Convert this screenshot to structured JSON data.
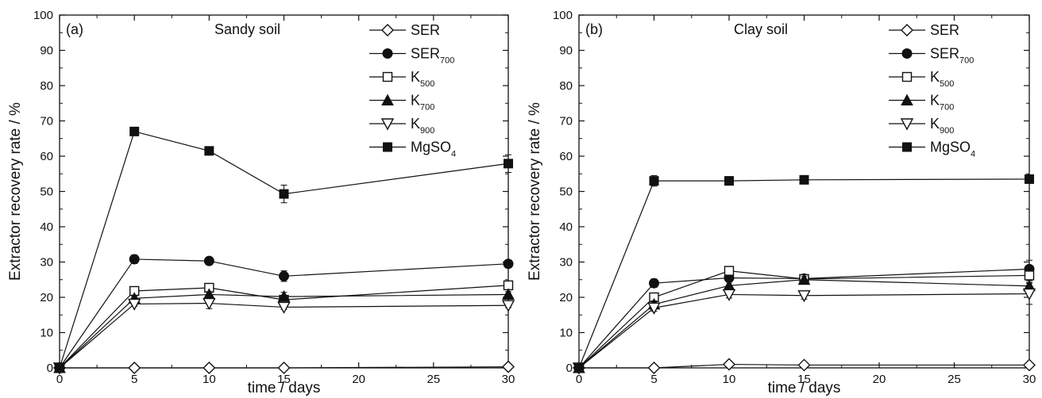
{
  "chart_data": [
    {
      "type": "line",
      "panel_label": "(a)",
      "title": "Sandy soil",
      "xlabel": "time / days",
      "ylabel": "Extractor recovery rate / %",
      "xlim": [
        0,
        30
      ],
      "ylim": [
        0,
        100
      ],
      "x_ticks": [
        0,
        5,
        10,
        15,
        20,
        25,
        30
      ],
      "y_ticks": [
        0,
        10,
        20,
        30,
        40,
        50,
        60,
        70,
        80,
        90,
        100
      ],
      "legend_position": "top-right",
      "x": [
        0,
        5,
        10,
        15,
        30
      ],
      "series": [
        {
          "name": "SER",
          "label_main": "SER",
          "label_sub": "",
          "marker": "diamond-open",
          "values": [
            0,
            0,
            0,
            0,
            0.3
          ],
          "errors": [
            0,
            0,
            0,
            0,
            0
          ]
        },
        {
          "name": "SER700",
          "label_main": "SER",
          "label_sub": "700",
          "marker": "circle-filled",
          "values": [
            0,
            30.8,
            30.3,
            26,
            29.5
          ],
          "errors": [
            0,
            1.2,
            0.6,
            1.5,
            0.8
          ]
        },
        {
          "name": "K500",
          "label_main": "K",
          "label_sub": "500",
          "marker": "square-open",
          "values": [
            0,
            21.8,
            22.7,
            19.3,
            23.4
          ],
          "errors": [
            0,
            0.6,
            0.6,
            0.6,
            0.6
          ]
        },
        {
          "name": "K700",
          "label_main": "K",
          "label_sub": "700",
          "marker": "triangle-up-filled",
          "values": [
            0,
            19.7,
            20.8,
            20.2,
            20.8
          ],
          "errors": [
            0,
            0.6,
            0.8,
            1.2,
            0.8
          ]
        },
        {
          "name": "K900",
          "label_main": "K",
          "label_sub": "900",
          "marker": "triangle-down-open",
          "values": [
            0,
            18.1,
            18.3,
            17.2,
            17.7
          ],
          "errors": [
            0,
            0.6,
            1.5,
            0.6,
            0.6
          ]
        },
        {
          "name": "MgSO4",
          "label_main": "MgSO",
          "label_sub": "4",
          "marker": "square-filled",
          "values": [
            0,
            67,
            61.5,
            49.3,
            57.9
          ],
          "errors": [
            0,
            0.6,
            0.6,
            2.5,
            2.5
          ]
        }
      ]
    },
    {
      "type": "line",
      "panel_label": "(b)",
      "title": "Clay soil",
      "xlabel": "time / days",
      "ylabel": "Extractor recovery rate / %",
      "xlim": [
        0,
        30
      ],
      "ylim": [
        0,
        100
      ],
      "x_ticks": [
        0,
        5,
        10,
        15,
        20,
        25,
        30
      ],
      "y_ticks": [
        0,
        10,
        20,
        30,
        40,
        50,
        60,
        70,
        80,
        90,
        100
      ],
      "legend_position": "top-right",
      "x": [
        0,
        5,
        10,
        15,
        30
      ],
      "series": [
        {
          "name": "SER",
          "label_main": "SER",
          "label_sub": "",
          "marker": "diamond-open",
          "values": [
            0,
            0,
            1,
            0.8,
            0.8
          ],
          "errors": [
            0,
            0,
            0.5,
            0.5,
            0.5
          ]
        },
        {
          "name": "SER700",
          "label_main": "SER",
          "label_sub": "700",
          "marker": "circle-filled",
          "values": [
            0,
            24,
            25.5,
            25.3,
            28
          ],
          "errors": [
            0,
            1.2,
            1,
            1,
            2.5
          ]
        },
        {
          "name": "K500",
          "label_main": "K",
          "label_sub": "500",
          "marker": "square-open",
          "values": [
            0,
            20,
            27.5,
            25.2,
            26.2
          ],
          "errors": [
            0,
            1.2,
            1,
            1,
            2
          ]
        },
        {
          "name": "K700",
          "label_main": "K",
          "label_sub": "700",
          "marker": "triangle-up-filled",
          "values": [
            0,
            18,
            23.3,
            25,
            23.2
          ],
          "errors": [
            0,
            1,
            1,
            1,
            1.5
          ]
        },
        {
          "name": "K900",
          "label_main": "K",
          "label_sub": "900",
          "marker": "triangle-down-open",
          "values": [
            0,
            17,
            20.8,
            20.5,
            21
          ],
          "errors": [
            0,
            1,
            1,
            1,
            3
          ]
        },
        {
          "name": "MgSO4",
          "label_main": "MgSO",
          "label_sub": "4",
          "marker": "square-filled",
          "values": [
            0,
            53,
            53,
            53.3,
            53.5
          ],
          "errors": [
            0,
            1.5,
            1.2,
            0.8,
            0.8
          ]
        }
      ]
    }
  ]
}
